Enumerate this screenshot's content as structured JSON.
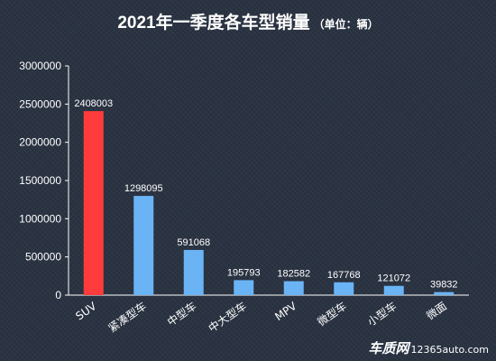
{
  "chart_data": {
    "type": "bar",
    "title": "2021年一季度各车型销量",
    "subtitle": "（单位：辆）",
    "categories": [
      "SUV",
      "紧凑型车",
      "中型车",
      "中大型车",
      "MPV",
      "微型车",
      "小型车",
      "微面"
    ],
    "values": [
      2408003,
      1298095,
      591068,
      195793,
      182582,
      167768,
      121072,
      39832
    ],
    "data_labels": [
      "2408003",
      "1298095",
      "591068",
      "195793",
      "182582",
      "167768",
      "121072",
      "39832"
    ],
    "ylim": [
      0,
      3000000
    ],
    "yticks": [
      0,
      500000,
      1000000,
      1500000,
      2000000,
      2500000,
      3000000
    ],
    "ytick_labels": [
      "0",
      "500000",
      "1000000",
      "1500000",
      "2000000",
      "2500000",
      "3000000"
    ],
    "grid": false,
    "highlight_color": "#ff3b3b",
    "bar_color": "#6ab4f5",
    "axis_color": "#ffffff"
  },
  "watermark": {
    "logo": "车质网",
    "url": "12365auto.com"
  }
}
